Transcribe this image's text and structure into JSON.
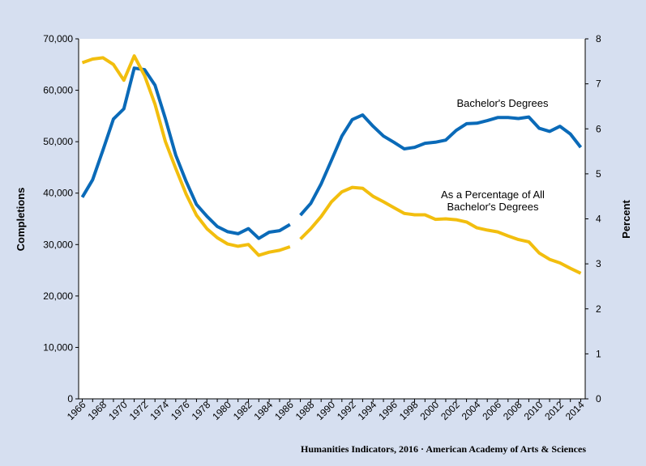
{
  "chart_data": {
    "type": "line",
    "left_axis": {
      "title": "Completions",
      "ylim": [
        0,
        70000
      ],
      "tick_labels": [
        "0",
        "10,000",
        "20,000",
        "30,000",
        "40,000",
        "50,000",
        "60,000",
        "70,000"
      ]
    },
    "right_axis": {
      "title": "Percent",
      "ylim": [
        0,
        8
      ],
      "tick_labels": [
        "0",
        "1",
        "2",
        "3",
        "4",
        "5",
        "6",
        "7",
        "8"
      ]
    },
    "x_tick_labels": [
      "1966",
      "1968",
      "1970",
      "1972",
      "1974",
      "1976",
      "1978",
      "1980",
      "1982",
      "1984",
      "1986",
      "1988",
      "1990",
      "1992",
      "1994",
      "1996",
      "1998",
      "2000",
      "2002",
      "2004",
      "2006",
      "2008",
      "2010",
      "2012",
      "2014"
    ],
    "grid": false,
    "series": [
      {
        "name": "Bachelor's Degrees",
        "axis": "left",
        "color": "#0a6ab8",
        "segments": [
          [
            [
              1966,
              39200
            ],
            [
              1967,
              42600
            ],
            [
              1968,
              48400
            ],
            [
              1969,
              54400
            ],
            [
              1970,
              56400
            ],
            [
              1971,
              64300
            ],
            [
              1972,
              64000
            ],
            [
              1973,
              61000
            ],
            [
              1974,
              54500
            ],
            [
              1975,
              47400
            ],
            [
              1976,
              42300
            ],
            [
              1977,
              37800
            ],
            [
              1978,
              35500
            ],
            [
              1979,
              33500
            ],
            [
              1980,
              32500
            ],
            [
              1981,
              32100
            ],
            [
              1982,
              33100
            ],
            [
              1983,
              31200
            ],
            [
              1984,
              32400
            ],
            [
              1985,
              32700
            ],
            [
              1986,
              33900
            ]
          ],
          [
            [
              1987,
              35700
            ],
            [
              1988,
              38000
            ],
            [
              1989,
              41800
            ],
            [
              1990,
              46400
            ],
            [
              1991,
              51100
            ],
            [
              1992,
              54300
            ],
            [
              1993,
              55200
            ],
            [
              1994,
              53000
            ],
            [
              1995,
              51100
            ],
            [
              1996,
              49900
            ],
            [
              1997,
              48600
            ],
            [
              1998,
              48900
            ],
            [
              1999,
              49700
            ],
            [
              2000,
              49900
            ],
            [
              2001,
              50300
            ],
            [
              2002,
              52200
            ],
            [
              2003,
              53500
            ],
            [
              2004,
              53600
            ],
            [
              2005,
              54100
            ],
            [
              2006,
              54700
            ],
            [
              2007,
              54700
            ],
            [
              2008,
              54500
            ],
            [
              2009,
              54800
            ],
            [
              2010,
              52600
            ],
            [
              2011,
              52000
            ],
            [
              2012,
              53000
            ],
            [
              2013,
              51500
            ],
            [
              2014,
              48900
            ]
          ]
        ]
      },
      {
        "name": "As a Percentage of All Bachelor's Degrees",
        "axis": "right",
        "color": "#f2be0e",
        "segments": [
          [
            [
              1966,
              7.47
            ],
            [
              1967,
              7.55
            ],
            [
              1968,
              7.58
            ],
            [
              1969,
              7.43
            ],
            [
              1970,
              7.08
            ],
            [
              1971,
              7.62
            ],
            [
              1972,
              7.18
            ],
            [
              1973,
              6.55
            ],
            [
              1974,
              5.72
            ],
            [
              1975,
              5.12
            ],
            [
              1976,
              4.55
            ],
            [
              1977,
              4.08
            ],
            [
              1978,
              3.78
            ],
            [
              1979,
              3.58
            ],
            [
              1980,
              3.44
            ],
            [
              1981,
              3.39
            ],
            [
              1982,
              3.43
            ],
            [
              1983,
              3.19
            ],
            [
              1984,
              3.26
            ],
            [
              1985,
              3.3
            ],
            [
              1986,
              3.38
            ]
          ],
          [
            [
              1987,
              3.55
            ],
            [
              1988,
              3.78
            ],
            [
              1989,
              4.05
            ],
            [
              1990,
              4.38
            ],
            [
              1991,
              4.6
            ],
            [
              1992,
              4.7
            ],
            [
              1993,
              4.68
            ],
            [
              1994,
              4.5
            ],
            [
              1995,
              4.38
            ],
            [
              1996,
              4.25
            ],
            [
              1997,
              4.12
            ],
            [
              1998,
              4.09
            ],
            [
              1999,
              4.09
            ],
            [
              2000,
              3.99
            ],
            [
              2001,
              4.0
            ],
            [
              2002,
              3.98
            ],
            [
              2003,
              3.93
            ],
            [
              2004,
              3.8
            ],
            [
              2005,
              3.75
            ],
            [
              2006,
              3.71
            ],
            [
              2007,
              3.62
            ],
            [
              2008,
              3.54
            ],
            [
              2009,
              3.49
            ],
            [
              2010,
              3.24
            ],
            [
              2011,
              3.1
            ],
            [
              2012,
              3.02
            ],
            [
              2013,
              2.9
            ],
            [
              2014,
              2.79
            ]
          ]
        ]
      }
    ],
    "annotations": {
      "bachelors_label": "Bachelor's Degrees",
      "percent_label_line1": "As a Percentage of All",
      "percent_label_line2": "Bachelor's Degrees"
    },
    "credit": "Humanities Indicators, 2016 · American Academy of Arts & Sciences"
  }
}
